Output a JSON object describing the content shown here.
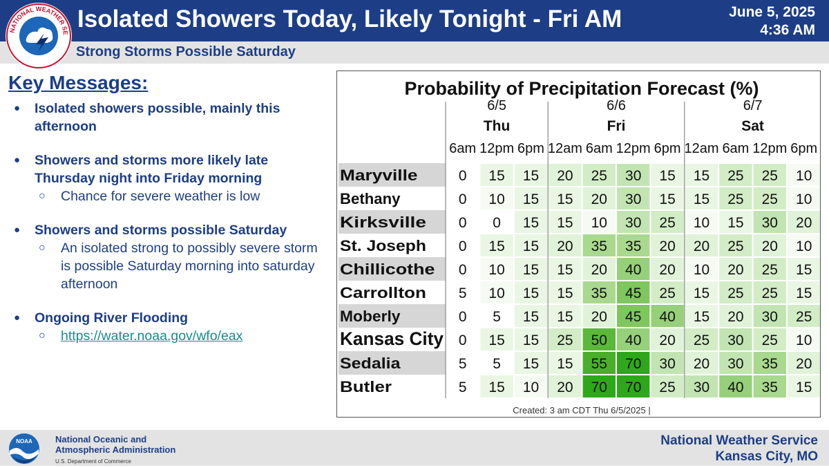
{
  "header": {
    "title": "Isolated Showers Today, Likely Tonight - Fri AM",
    "date": "June 5, 2025",
    "time": "4:36 AM",
    "subtitle": "Strong Storms Possible Saturday",
    "logo_text": "NATIONAL WEATHER SERVICE"
  },
  "key_messages": {
    "title": "Key Messages:",
    "items": [
      {
        "text": "Isolated showers possible, mainly this afternoon",
        "sub": []
      },
      {
        "text": "Showers and storms more likely late Thursday night into Friday morning",
        "sub": [
          "Chance for severe weather is low"
        ]
      },
      {
        "text": "Showers and storms possible Saturday",
        "sub": [
          "An isolated strong to possibly severe storm is possible Saturday morning into saturday afternoon"
        ]
      },
      {
        "text": "Ongoing River Flooding",
        "sub": [],
        "link": "https://water.noaa.gov/wfo/eax"
      }
    ]
  },
  "pop_table": {
    "title": "Probability of Precipitation Forecast (%)",
    "days": [
      {
        "date": "6/5",
        "day": "Thu",
        "times": [
          "6am",
          "12pm",
          "6pm"
        ]
      },
      {
        "date": "6/6",
        "day": "Fri",
        "times": [
          "12am",
          "6am",
          "12pm",
          "6pm"
        ]
      },
      {
        "date": "6/7",
        "day": "Sat",
        "times": [
          "12am",
          "6am",
          "12pm",
          "6pm"
        ]
      }
    ],
    "rows": [
      {
        "name": "Maryville",
        "values": [
          0,
          15,
          15,
          20,
          25,
          30,
          15,
          15,
          25,
          25,
          10
        ]
      },
      {
        "name": "Bethany",
        "values": [
          0,
          10,
          15,
          15,
          20,
          30,
          15,
          15,
          25,
          25,
          10
        ]
      },
      {
        "name": "Kirksville",
        "values": [
          0,
          0,
          15,
          15,
          10,
          30,
          25,
          10,
          15,
          30,
          20
        ]
      },
      {
        "name": "St. Joseph",
        "values": [
          0,
          15,
          15,
          20,
          35,
          35,
          20,
          20,
          25,
          20,
          10
        ]
      },
      {
        "name": "Chillicothe",
        "values": [
          0,
          10,
          15,
          15,
          20,
          40,
          20,
          10,
          20,
          25,
          15
        ]
      },
      {
        "name": "Carrollton",
        "values": [
          5,
          10,
          15,
          15,
          35,
          45,
          25,
          15,
          25,
          25,
          15
        ]
      },
      {
        "name": "Moberly",
        "values": [
          0,
          5,
          15,
          15,
          20,
          45,
          40,
          15,
          20,
          30,
          25
        ]
      },
      {
        "name": "Kansas City",
        "values": [
          0,
          15,
          15,
          25,
          50,
          40,
          20,
          25,
          30,
          25,
          10
        ],
        "emphasis": true
      },
      {
        "name": "Sedalia",
        "values": [
          5,
          5,
          15,
          15,
          55,
          70,
          30,
          20,
          30,
          35,
          20
        ]
      },
      {
        "name": "Butler",
        "values": [
          5,
          15,
          10,
          20,
          70,
          70,
          25,
          30,
          40,
          35,
          15
        ]
      }
    ],
    "created": "Created: 3 am CDT Thu 6/5/2025  |"
  },
  "footer": {
    "noaa_line1": "National Oceanic and",
    "noaa_line2": "Atmospheric Administration",
    "noaa_dept": "U.S. Department of Commerce",
    "nws_line1": "National Weather Service",
    "nws_line2": "Kansas City, MO",
    "noaa_logo_text": "NOAA"
  },
  "colors": {
    "header_blue": "#1d3e86",
    "subheader_gray": "#e3e3e3",
    "link": "#1a8a8a",
    "low_fill": "#e8f6e3",
    "high_fill": "#2ea81a"
  }
}
